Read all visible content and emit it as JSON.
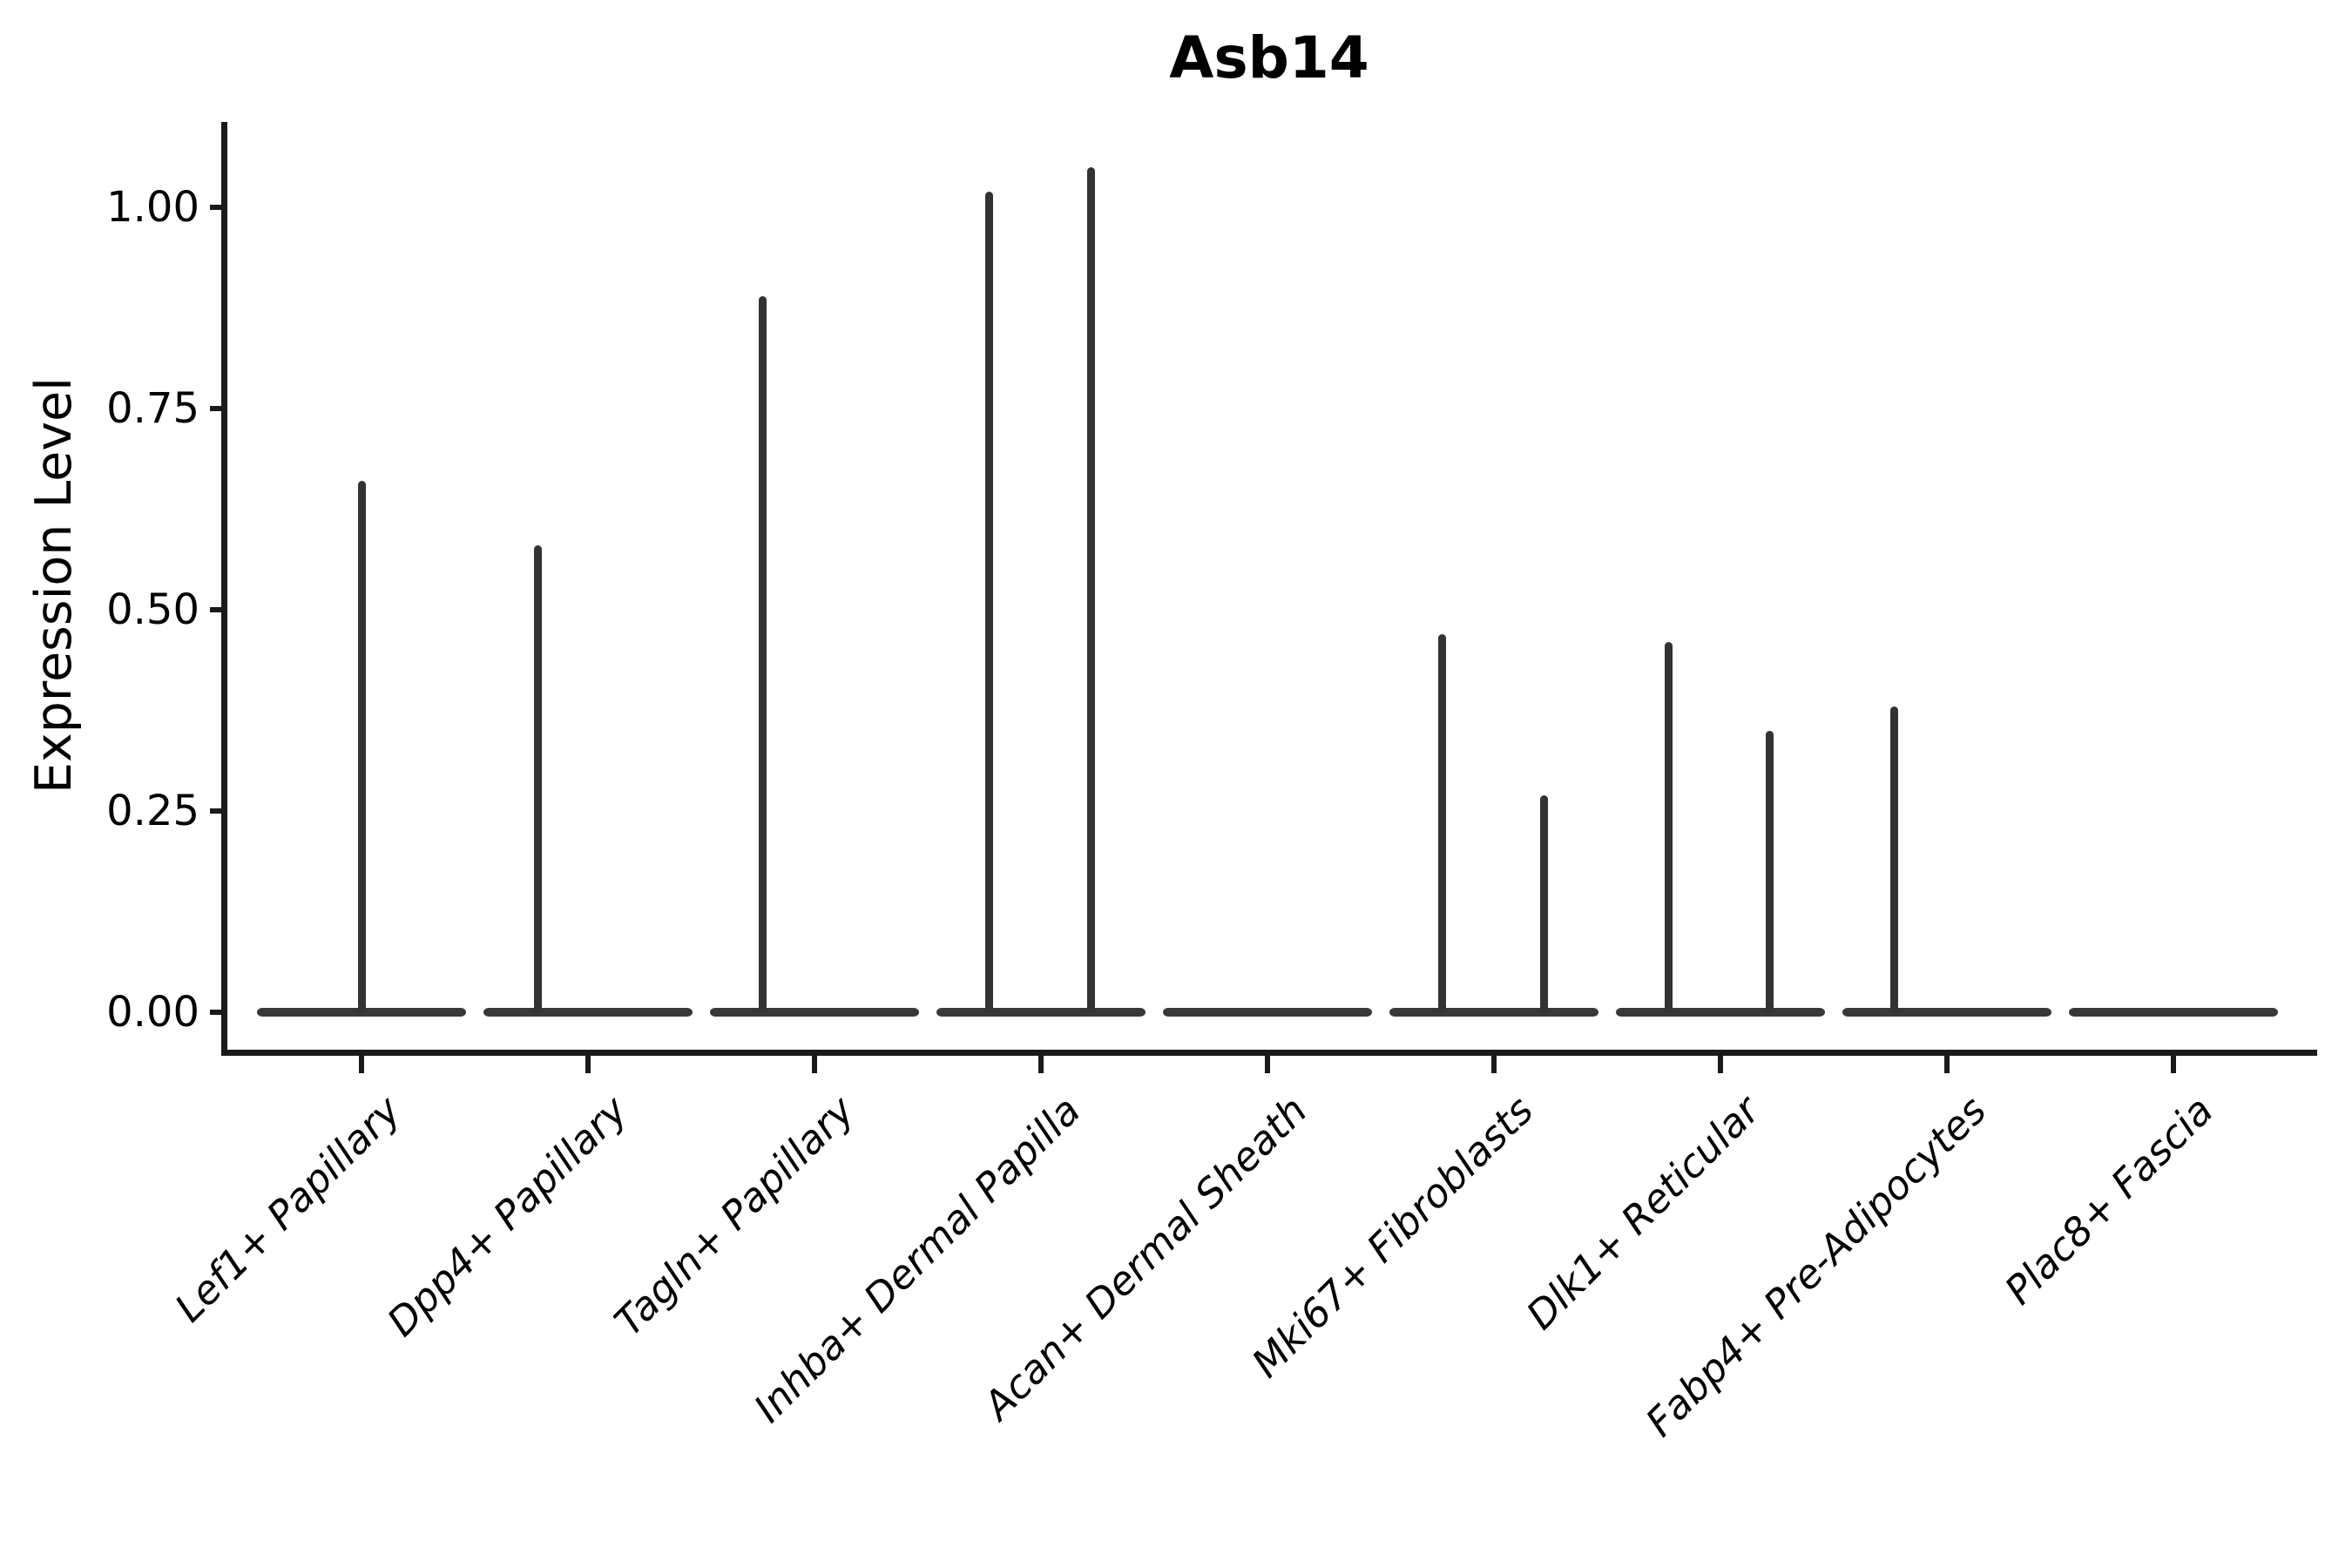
{
  "title": "Asb14",
  "colors": {
    "background": "#ffffff",
    "axis": "#1a1a1a",
    "violin": "#383838",
    "spike": "#333333",
    "text": "#000000"
  },
  "chart_data": {
    "type": "violin",
    "title": "Asb14",
    "xlabel": "",
    "ylabel": "Expression Level",
    "ylim": [
      -0.05,
      1.11
    ],
    "grid": false,
    "legend": "none",
    "yticks": [
      {
        "value": 0.0,
        "label": "0.00"
      },
      {
        "value": 0.25,
        "label": "0.25"
      },
      {
        "value": 0.5,
        "label": "0.50"
      },
      {
        "value": 0.75,
        "label": "0.75"
      },
      {
        "value": 1.0,
        "label": "1.00"
      }
    ],
    "categories": [
      "Lef1+ Papillary",
      "Dpp4+ Papillary",
      "Tagln+ Papillary",
      "Inhba+ Dermal Papilla",
      "Acan+ Dermal Sheath",
      "Mki67+ Fibroblasts",
      "Dlk1+ Reticular",
      "Fabp4+ Pre-Adipocytes",
      "Plac8+ Fascia"
    ],
    "violins": [
      {
        "label": "Lef1+ Papillary",
        "zero_bar": true,
        "spikes": [
          {
            "dx": 0,
            "value": 0.66
          }
        ]
      },
      {
        "label": "Dpp4+ Papillary",
        "zero_bar": true,
        "spikes": [
          {
            "dx": -58,
            "value": 0.58
          }
        ]
      },
      {
        "label": "Tagln+ Papillary",
        "zero_bar": true,
        "spikes": [
          {
            "dx": -60,
            "value": 0.89
          }
        ]
      },
      {
        "label": "Inhba+ Dermal Papilla",
        "zero_bar": true,
        "spikes": [
          {
            "dx": -60,
            "value": 1.02
          },
          {
            "dx": 57,
            "value": 1.05
          }
        ]
      },
      {
        "label": "Acan+ Dermal Sheath",
        "zero_bar": true,
        "spikes": []
      },
      {
        "label": "Mki67+ Fibroblasts",
        "zero_bar": true,
        "spikes": [
          {
            "dx": -60,
            "value": 0.47
          },
          {
            "dx": 57,
            "value": 0.27
          }
        ]
      },
      {
        "label": "Dlk1+ Reticular",
        "zero_bar": true,
        "spikes": [
          {
            "dx": -60,
            "value": 0.46
          },
          {
            "dx": 56,
            "value": 0.35
          }
        ]
      },
      {
        "label": "Fabp4+ Pre-Adipocytes",
        "zero_bar": true,
        "spikes": [
          {
            "dx": -61,
            "value": 0.38
          }
        ]
      },
      {
        "label": "Plac8+ Fascia",
        "zero_bar": true,
        "spikes": []
      }
    ]
  }
}
